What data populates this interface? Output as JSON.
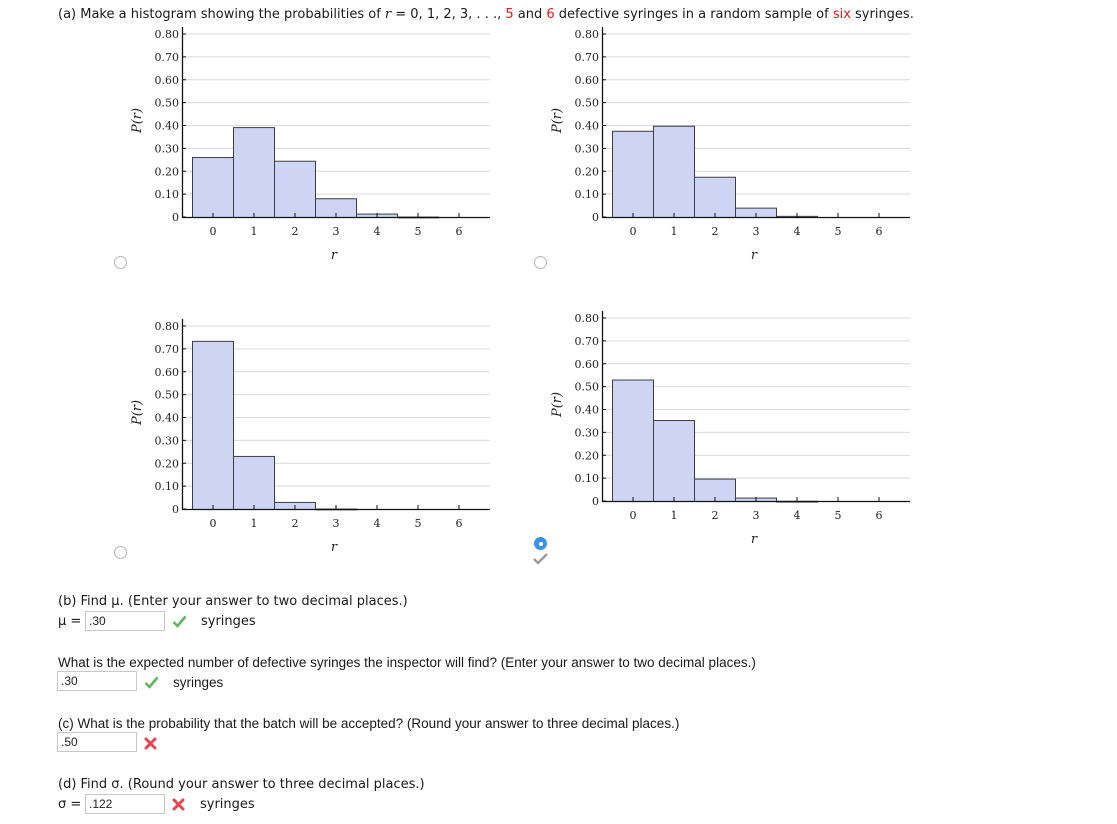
{
  "part_a": {
    "prefix": "(a) Make a histogram showing the probabilities of ",
    "var": "r",
    "middle": " = 0, 1, 2, 3, . . ., ",
    "hl1": "5",
    "and": " and ",
    "hl2": "6",
    "suffix1": " defective syringes in a random sample of ",
    "hl3": "six",
    "suffix2": " syringes."
  },
  "colors": {
    "bar_fill": "#cdd5f2",
    "bar_stroke": "#3c3c4a",
    "grid": "#d9d9d9",
    "axis": "#111111",
    "highlight_red": "#e4191c",
    "radio_selected": "#3d92e8",
    "check_green": "#5cb85c",
    "cross_red": "#e8434e"
  },
  "chart_data": [
    {
      "type": "bar",
      "id": "option-1",
      "categories": [
        "0",
        "1",
        "2",
        "3",
        "4",
        "5",
        "6"
      ],
      "values": [
        0.262,
        0.393,
        0.246,
        0.082,
        0.015,
        0.002,
        0.0
      ],
      "xlabel": "r",
      "ylabel": "P(r)",
      "ylim": [
        0,
        0.8
      ],
      "yticks": [
        "0",
        "0.10",
        "0.20",
        "0.30",
        "0.40",
        "0.50",
        "0.60",
        "0.70",
        "0.80"
      ],
      "grid": true,
      "selected": false
    },
    {
      "type": "bar",
      "id": "option-2",
      "categories": [
        "0",
        "1",
        "2",
        "3",
        "4",
        "5",
        "6"
      ],
      "values": [
        0.377,
        0.399,
        0.176,
        0.041,
        0.005,
        0.0,
        0.0
      ],
      "xlabel": "r",
      "ylabel": "P(r)",
      "ylim": [
        0,
        0.8
      ],
      "yticks": [
        "0",
        "0.10",
        "0.20",
        "0.30",
        "0.40",
        "0.50",
        "0.60",
        "0.70",
        "0.80"
      ],
      "grid": true,
      "selected": false
    },
    {
      "type": "bar",
      "id": "option-3",
      "categories": [
        "0",
        "1",
        "2",
        "3",
        "4",
        "5",
        "6"
      ],
      "values": [
        0.735,
        0.232,
        0.031,
        0.002,
        0.0,
        0.0,
        0.0
      ],
      "xlabel": "r",
      "ylabel": "P(r)",
      "ylim": [
        0,
        0.8
      ],
      "yticks": [
        "0",
        "0.10",
        "0.20",
        "0.30",
        "0.40",
        "0.50",
        "0.60",
        "0.70",
        "0.80"
      ],
      "grid": true,
      "selected": false
    },
    {
      "type": "bar",
      "id": "option-4",
      "categories": [
        "0",
        "1",
        "2",
        "3",
        "4",
        "5",
        "6"
      ],
      "values": [
        0.531,
        0.354,
        0.098,
        0.015,
        0.001,
        0.0,
        0.0
      ],
      "xlabel": "r",
      "ylabel": "P(r)",
      "ylim": [
        0,
        0.8
      ],
      "yticks": [
        "0",
        "0.10",
        "0.20",
        "0.30",
        "0.40",
        "0.50",
        "0.60",
        "0.70",
        "0.80"
      ],
      "grid": true,
      "selected": true
    }
  ],
  "part_b": {
    "question": "(b) Find μ. (Enter your answer to two decimal places.)",
    "label": "μ =",
    "value": ".30",
    "status": "correct",
    "unit": "syringes"
  },
  "expected": {
    "question": "What is the expected number of defective syringes the inspector will find? (Enter your answer to two decimal places.)",
    "value": ".30",
    "status": "correct",
    "unit": "syringes"
  },
  "part_c": {
    "question": "(c) What is the probability that the batch will be accepted? (Round your answer to three decimal places.)",
    "value": ".50",
    "status": "incorrect"
  },
  "part_d": {
    "question": "(d) Find σ. (Round your answer to three decimal places.)",
    "label": "σ =",
    "value": ".122",
    "status": "incorrect",
    "unit": "syringes"
  }
}
